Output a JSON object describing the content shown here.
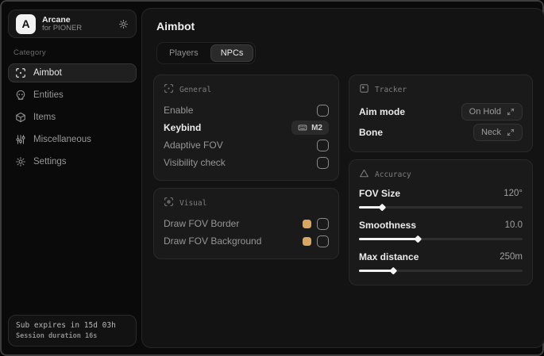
{
  "sidebar": {
    "brand": {
      "logo_letter": "A",
      "name": "Arcane",
      "subtitle": "for PIONER"
    },
    "category_label": "Category",
    "items": [
      {
        "label": "Aimbot",
        "icon": "crosshair-scan-icon",
        "selected": true
      },
      {
        "label": "Entities",
        "icon": "skull-icon",
        "selected": false
      },
      {
        "label": "Items",
        "icon": "package-icon",
        "selected": false
      },
      {
        "label": "Miscellaneous",
        "icon": "sliders-icon",
        "selected": false
      },
      {
        "label": "Settings",
        "icon": "gear-icon",
        "selected": false
      }
    ],
    "footer": {
      "line1": "Sub expires in 15d 03h",
      "line2": "Session duration 16s"
    }
  },
  "main": {
    "title": "Aimbot",
    "tabs": [
      {
        "label": "Players",
        "active": false
      },
      {
        "label": "NPCs",
        "active": true
      }
    ],
    "cards": {
      "general": {
        "title": "General",
        "rows": [
          {
            "label": "Enable",
            "control": "checkbox",
            "checked": false
          },
          {
            "label": "Keybind",
            "control": "keybind-badge",
            "value": "M2"
          },
          {
            "label": "Adaptive FOV",
            "control": "checkbox",
            "checked": false
          },
          {
            "label": "Visibility check",
            "control": "checkbox",
            "checked": false
          }
        ]
      },
      "visual": {
        "title": "Visual",
        "rows": [
          {
            "label": "Draw FOV Border",
            "control": "color-checkbox",
            "color": "#d8a660",
            "checked": false
          },
          {
            "label": "Draw FOV Background",
            "control": "color-checkbox",
            "color": "#d8a660",
            "checked": false
          }
        ]
      },
      "tracker": {
        "title": "Tracker",
        "rows": [
          {
            "label": "Aim mode",
            "value": "On Hold"
          },
          {
            "label": "Bone",
            "value": "Neck"
          }
        ]
      },
      "accuracy": {
        "title": "Accuracy",
        "sliders": [
          {
            "label": "FOV Size",
            "value": "120°",
            "percent": 14
          },
          {
            "label": "Smoothness",
            "value": "10.0",
            "percent": 36
          },
          {
            "label": "Max distance",
            "value": "250m",
            "percent": 21
          }
        ]
      }
    }
  },
  "colors": {
    "accent": "#d8a660"
  }
}
